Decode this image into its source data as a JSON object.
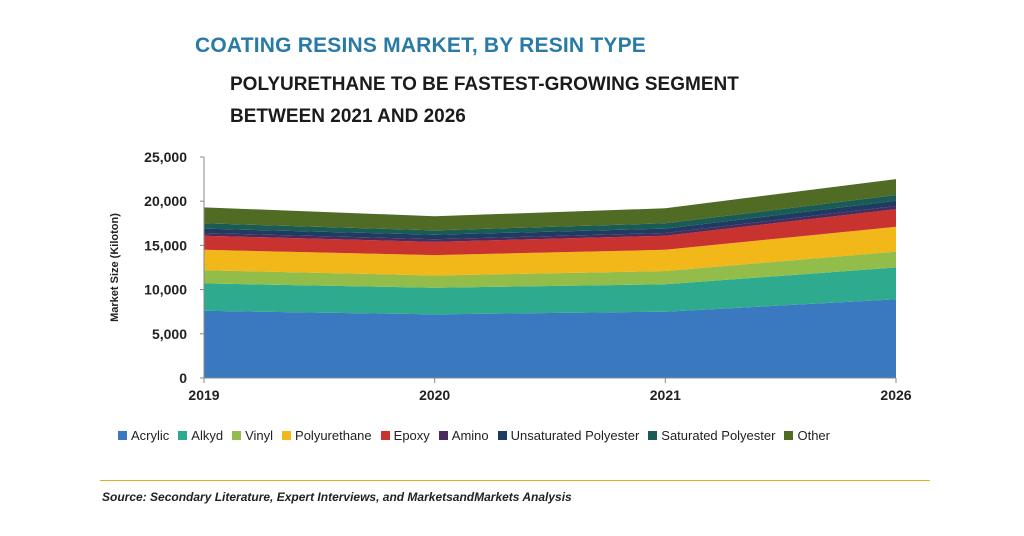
{
  "title": "COATING RESINS MARKET, BY RESIN TYPE",
  "subtitle_line1": "POLYURETHANE TO BE FASTEST-GROWING SEGMENT",
  "subtitle_line2": "BETWEEN 2021 AND 2026",
  "source": "Source: Secondary Literature, Expert Interviews, and MarketsandMarkets Analysis",
  "chart_data": {
    "type": "area",
    "stacked": true,
    "categories": [
      "2019",
      "2020",
      "2021",
      "2026"
    ],
    "ylabel": "Market Size (Kiloton)",
    "xlabel": "",
    "ylim": [
      0,
      25000
    ],
    "yticks": [
      "0",
      "5,000",
      "10,000",
      "15,000",
      "20,000",
      "25,000"
    ],
    "ytick_values": [
      0,
      5000,
      10000,
      15000,
      20000,
      25000
    ],
    "grid": false,
    "legend_position": "bottom",
    "series": [
      {
        "name": "Acrylic",
        "color": "#3a78c0",
        "values": [
          7600,
          7200,
          7500,
          8900
        ]
      },
      {
        "name": "Alkyd",
        "color": "#2eab8e",
        "values": [
          3100,
          3000,
          3100,
          3600
        ]
      },
      {
        "name": "Vinyl",
        "color": "#93bd4a",
        "values": [
          1500,
          1400,
          1500,
          1800
        ]
      },
      {
        "name": "Polyurethane",
        "color": "#f2b718",
        "values": [
          2300,
          2300,
          2400,
          2800
        ]
      },
      {
        "name": "Epoxy",
        "color": "#c8322f",
        "values": [
          1600,
          1500,
          1600,
          2000
        ]
      },
      {
        "name": "Amino",
        "color": "#4b2a5c",
        "values": [
          300,
          300,
          300,
          350
        ]
      },
      {
        "name": "Unsaturated Polyester",
        "color": "#1e3b62",
        "values": [
          500,
          500,
          500,
          600
        ]
      },
      {
        "name": "Saturated Polyester",
        "color": "#1a5c55",
        "values": [
          600,
          500,
          600,
          650
        ]
      },
      {
        "name": "Other",
        "color": "#4f6b24",
        "values": [
          1800,
          1600,
          1700,
          1800
        ]
      }
    ]
  }
}
